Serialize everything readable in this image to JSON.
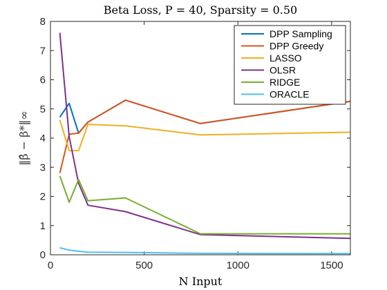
{
  "chart_data": {
    "type": "line",
    "title": "Beta Loss, P = 40, Sparsity = 0.50",
    "xlabel": "N Input",
    "ylabel": "‖β̂ − β*‖∞",
    "xlim": [
      0,
      1600
    ],
    "ylim": [
      0,
      8
    ],
    "xticks": [
      0,
      500,
      1000,
      1500
    ],
    "yticks": [
      0,
      1,
      2,
      3,
      4,
      5,
      6,
      7,
      8
    ],
    "grid": false,
    "legend_position": "top-right",
    "series": [
      {
        "name": "DPP Sampling",
        "color": "#0072BD",
        "x": [
          50,
          100,
          150,
          200,
          400,
          800,
          1600
        ],
        "y": [
          4.72,
          5.19,
          4.17,
          4.55,
          5.3,
          4.5,
          5.26
        ]
      },
      {
        "name": "DPP Greedy",
        "color": "#D95319",
        "x": [
          50,
          100,
          150,
          200,
          400,
          800,
          1600
        ],
        "y": [
          2.8,
          4.13,
          4.17,
          4.55,
          5.3,
          4.5,
          5.26
        ]
      },
      {
        "name": "LASSO",
        "color": "#EDB120",
        "x": [
          50,
          100,
          150,
          200,
          400,
          800,
          1600
        ],
        "y": [
          4.62,
          3.57,
          3.57,
          4.47,
          4.42,
          4.11,
          4.2
        ]
      },
      {
        "name": "OLSR",
        "color": "#7E2F8E",
        "x": [
          50,
          100,
          150,
          200,
          400,
          800,
          1600
        ],
        "y": [
          7.61,
          4.05,
          2.45,
          1.7,
          1.48,
          0.69,
          0.56
        ]
      },
      {
        "name": "RIDGE",
        "color": "#77AC30",
        "x": [
          50,
          100,
          150,
          200,
          400,
          800,
          1600
        ],
        "y": [
          2.7,
          1.8,
          2.58,
          1.85,
          1.95,
          0.72,
          0.72
        ]
      },
      {
        "name": "ORACLE",
        "color": "#4DBEEE",
        "x": [
          50,
          100,
          150,
          200,
          400,
          800,
          1600
        ],
        "y": [
          0.24,
          0.16,
          0.12,
          0.09,
          0.08,
          0.05,
          0.04
        ]
      }
    ]
  }
}
